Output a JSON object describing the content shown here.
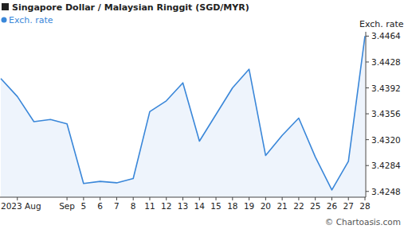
{
  "chart_data": {
    "type": "line",
    "title": "Singapore Dollar / Malaysian Ringgit (SGD/MYR)",
    "y_label": "Exch. rate",
    "watermark": "© Chartoasis.com",
    "categories": [
      null,
      "2023 Aug",
      null,
      null,
      "Sep",
      "5",
      "6",
      "7",
      "8",
      "11",
      "12",
      "13",
      "14",
      "15",
      "18",
      "19",
      "20",
      "21",
      "22",
      "25",
      "26",
      "27",
      "28"
    ],
    "series": [
      {
        "name": "Exch. rate",
        "color": "#3a87d9",
        "values": [
          3.4405,
          3.438,
          3.4345,
          3.4348,
          3.4342,
          3.4259,
          3.4262,
          3.426,
          3.4266,
          3.4359,
          3.4374,
          3.4399,
          3.4318,
          3.4355,
          3.4392,
          3.4418,
          3.4298,
          3.4326,
          3.435,
          3.4296,
          3.425,
          3.429,
          3.4464
        ]
      }
    ],
    "ylim": [
      3.424,
      3.447
    ],
    "yticks": [
      3.4248,
      3.4284,
      {
        "value": 3.432,
        "label": "3.4320"
      },
      3.4356,
      3.4392,
      3.4428,
      3.4464
    ],
    "grid": false,
    "legend": "top-left"
  }
}
